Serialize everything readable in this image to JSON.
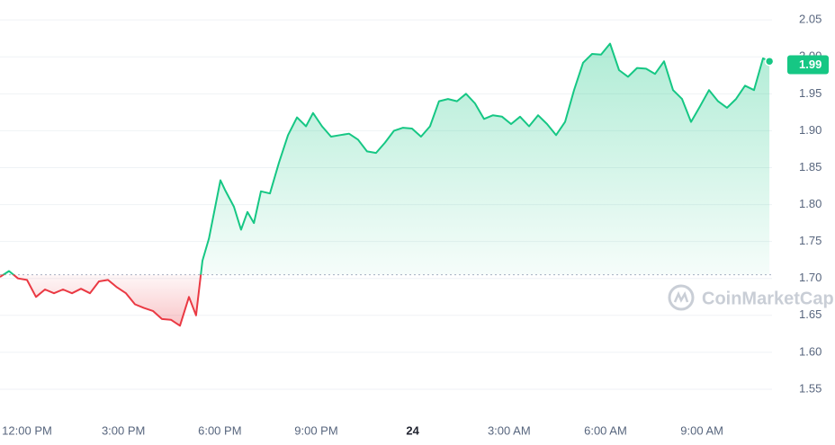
{
  "chart_data": {
    "type": "line",
    "watermark": "CoinMarketCap",
    "current_price": 1.99,
    "baseline": 1.705,
    "up_color": "#16c784",
    "down_color": "#ea3943",
    "grid": true,
    "xlim": [
      11.16,
      35.18
    ],
    "xticks": [
      {
        "value": 12,
        "label": "12:00 PM"
      },
      {
        "value": 15,
        "label": "3:00 PM"
      },
      {
        "value": 18,
        "label": "6:00 PM"
      },
      {
        "value": 21,
        "label": "9:00 PM"
      },
      24,
      {
        "value": 27,
        "label": "3:00 AM"
      },
      {
        "value": 30,
        "label": "6:00 AM"
      },
      {
        "value": 33,
        "label": "9:00 AM"
      }
    ],
    "ylim": [
      1.511,
      2.077
    ],
    "yticks": [
      1.55,
      {
        "value": 1.6,
        "label": "1.60"
      },
      1.65,
      {
        "value": 1.7,
        "label": "1.70"
      },
      1.75,
      {
        "value": 1.8,
        "label": "1.80"
      },
      1.85,
      {
        "value": 1.9,
        "label": "1.90"
      },
      1.95,
      {
        "value": 2,
        "label": "2.00"
      },
      2.05
    ],
    "x": [
      11.16,
      11.44,
      11.72,
      12,
      12.28,
      12.56,
      12.84,
      13.12,
      13.4,
      13.68,
      13.96,
      14.24,
      14.52,
      14.8,
      15.08,
      15.36,
      15.64,
      15.92,
      16.2,
      16.48,
      16.76,
      17.04,
      17.26,
      17.46,
      17.66,
      18.02,
      18.16,
      18.44,
      18.66,
      18.86,
      19.06,
      19.28,
      19.56,
      19.84,
      20.12,
      20.4,
      20.68,
      20.9,
      21.18,
      21.46,
      21.74,
      22.02,
      22.3,
      22.58,
      22.86,
      23.14,
      23.42,
      23.7,
      23.98,
      24.26,
      24.54,
      24.82,
      25.1,
      25.38,
      25.66,
      25.94,
      26.22,
      26.5,
      26.78,
      27.06,
      27.34,
      27.62,
      27.9,
      28.18,
      28.46,
      28.74,
      29.02,
      29.3,
      29.58,
      29.86,
      30.14,
      30.42,
      30.7,
      30.98,
      31.26,
      31.54,
      31.82,
      32.1,
      32.38,
      32.66,
      32.94,
      33.22,
      33.5,
      33.78,
      34.06,
      34.34,
      34.62,
      34.9,
      35.1
    ],
    "values": [
      1.702,
      1.71,
      1.7,
      1.698,
      1.675,
      1.685,
      1.68,
      1.685,
      1.68,
      1.686,
      1.68,
      1.696,
      1.698,
      1.688,
      1.68,
      1.665,
      1.66,
      1.656,
      1.645,
      1.644,
      1.636,
      1.675,
      1.65,
      1.724,
      1.754,
      1.833,
      1.82,
      1.797,
      1.766,
      1.79,
      1.775,
      1.818,
      1.815,
      1.857,
      1.894,
      1.918,
      1.906,
      1.924,
      1.906,
      1.892,
      1.894,
      1.896,
      1.888,
      1.872,
      1.87,
      1.884,
      1.9,
      1.904,
      1.903,
      1.892,
      1.906,
      1.94,
      1.943,
      1.94,
      1.95,
      1.937,
      1.916,
      1.921,
      1.919,
      1.909,
      1.919,
      1.906,
      1.921,
      1.909,
      1.894,
      1.912,
      1.955,
      1.992,
      2.004,
      2.003,
      2.018,
      1.982,
      1.973,
      1.985,
      1.984,
      1.977,
      1.994,
      1.955,
      1.943,
      1.912,
      1.933,
      1.955,
      1.94,
      1.931,
      1.943,
      1.961,
      1.955,
      1.998,
      1.994
    ]
  }
}
